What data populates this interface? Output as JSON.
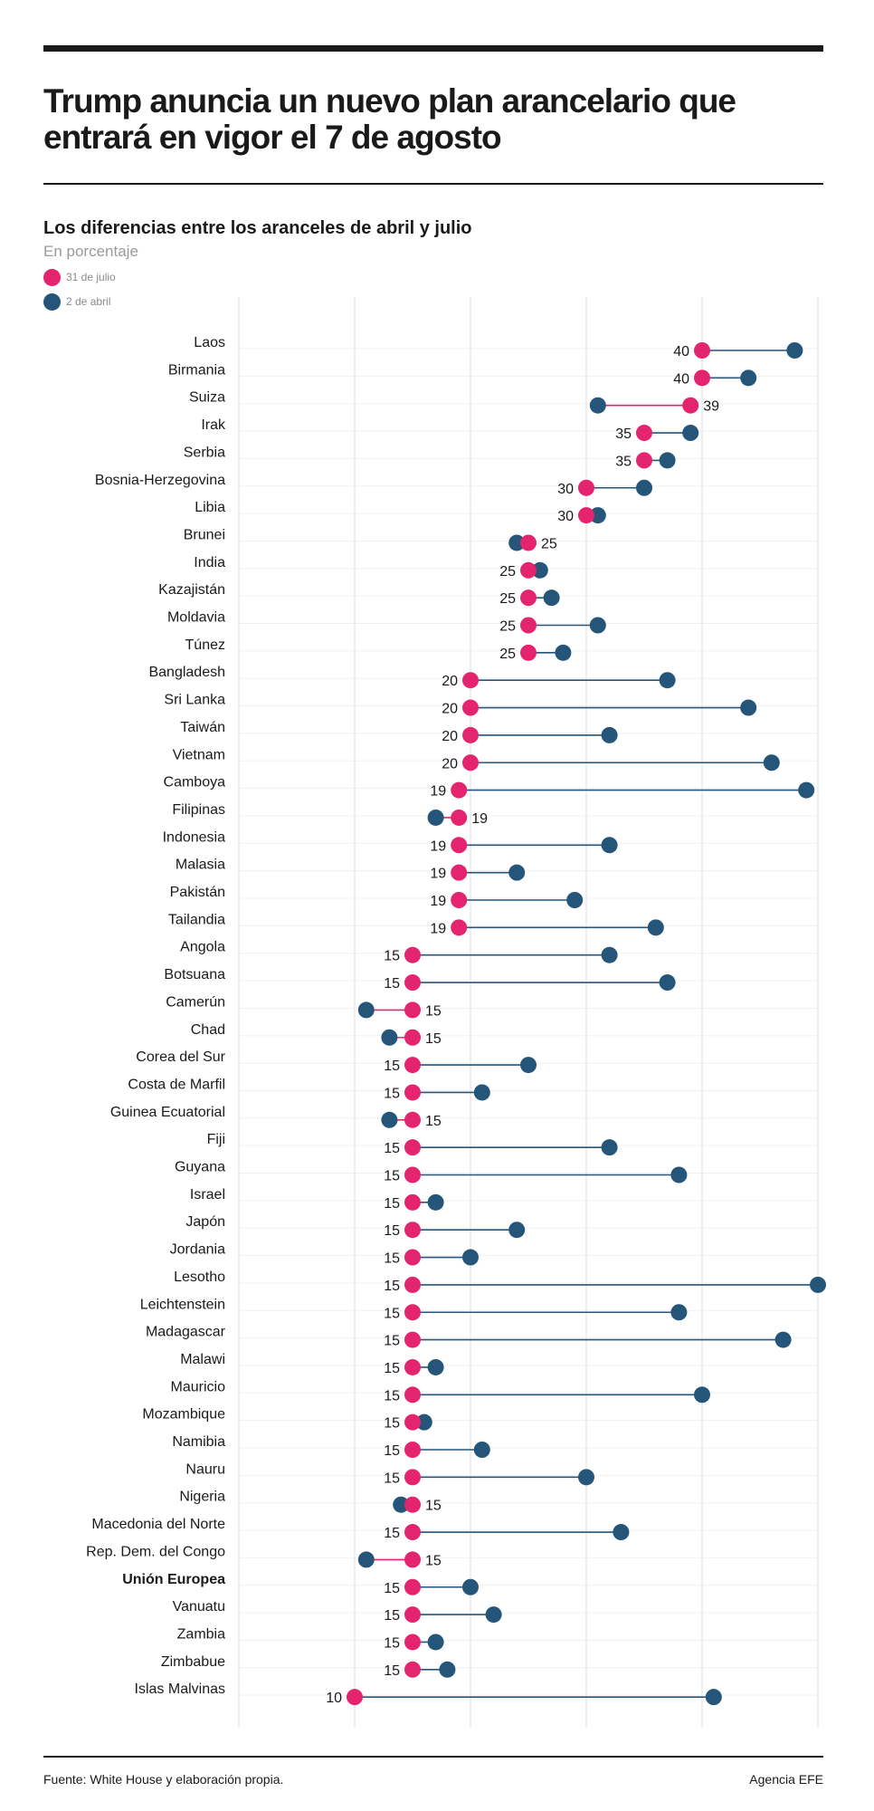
{
  "header": {
    "title": "Trump anuncia un nuevo plan arancelario que entrará en vigor el 7 de agosto"
  },
  "colors": {
    "july": "#e5246f",
    "april": "#255579",
    "grid": "#e2e2e2",
    "text": "#1a1a1a"
  },
  "chart_data": {
    "type": "dumbbell",
    "title": "Los diferencias entre los aranceles de abril y julio",
    "subtitle": "En porcentaje",
    "xlim": [
      0,
      50
    ],
    "grid": true,
    "legend": [
      {
        "name": "31 de julio",
        "color": "#e5246f"
      },
      {
        "name": "2 de abril",
        "color": "#255579"
      }
    ],
    "categories": [
      "Laos",
      "Birmania",
      "Suiza",
      "Irak",
      "Serbia",
      "Bosnia-Herzegovina",
      "Libia",
      "Brunei",
      "India",
      "Kazajistán",
      "Moldavia",
      "Túnez",
      "Bangladesh",
      "Sri Lanka",
      "Taiwán",
      "Vietnam",
      "Camboya",
      "Filipinas",
      "Indonesia",
      "Malasia",
      "Pakistán",
      "Tailandia",
      "Angola",
      "Botsuana",
      "Camerún",
      "Chad",
      "Corea del Sur",
      "Costa de Marfil",
      "Guinea Ecuatorial",
      "Fiji",
      "Guyana",
      "Israel",
      "Japón",
      "Jordania",
      "Lesotho",
      "Leichtenstein",
      "Madagascar",
      "Malawi",
      "Mauricio",
      "Mozambique",
      "Namibia",
      "Nauru",
      "Nigeria",
      "Macedonia del Norte",
      "Rep. Dem. del Congo",
      "Unión Europea",
      "Vanuatu",
      "Zambia",
      "Zimbabue",
      "Islas Malvinas"
    ],
    "highlight": [
      "Unión Europea"
    ],
    "series": [
      {
        "name": "31 de julio",
        "values": [
          40,
          40,
          39,
          35,
          35,
          30,
          30,
          25,
          25,
          25,
          25,
          25,
          20,
          20,
          20,
          20,
          19,
          19,
          19,
          19,
          19,
          19,
          15,
          15,
          15,
          15,
          15,
          15,
          15,
          15,
          15,
          15,
          15,
          15,
          15,
          15,
          15,
          15,
          15,
          15,
          15,
          15,
          15,
          15,
          15,
          15,
          15,
          15,
          15,
          10
        ]
      },
      {
        "name": "2 de abril",
        "values": [
          48,
          44,
          31,
          39,
          37,
          35,
          31,
          24,
          26,
          27,
          31,
          28,
          37,
          44,
          32,
          46,
          49,
          17,
          32,
          24,
          29,
          36,
          32,
          37,
          11,
          13,
          25,
          21,
          13,
          32,
          38,
          17,
          24,
          20,
          50,
          38,
          47,
          17,
          40,
          16,
          21,
          30,
          14,
          33,
          11,
          20,
          22,
          17,
          18,
          41
        ]
      }
    ]
  },
  "footer": {
    "source": "Fuente: White House y elaboración propia.",
    "credit": "Agencia EFE"
  }
}
